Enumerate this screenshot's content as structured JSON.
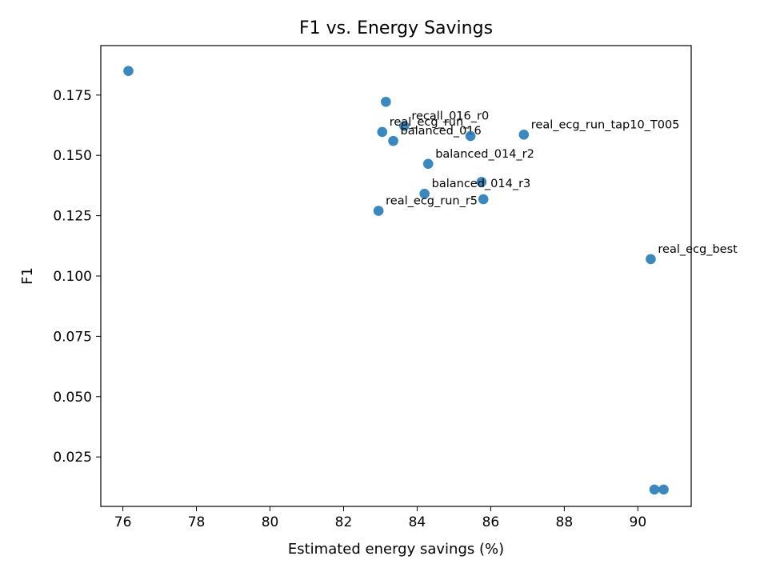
{
  "chart_data": {
    "type": "scatter",
    "title": "F1 vs. Energy Savings",
    "xlabel": "Estimated energy savings (%)",
    "ylabel": "F1",
    "xlim": [
      75.4,
      91.45
    ],
    "ylim": [
      0.0045,
      0.1955
    ],
    "grid": false,
    "legend": false,
    "marker_color": "#1f77b4",
    "xticks": [
      76,
      78,
      80,
      82,
      84,
      86,
      88,
      90
    ],
    "yticks": [
      0.025,
      0.05,
      0.075,
      0.1,
      0.125,
      0.15,
      0.175
    ],
    "xtick_labels": [
      "76",
      "78",
      "80",
      "82",
      "84",
      "86",
      "88",
      "90"
    ],
    "ytick_labels": [
      "0.025",
      "0.050",
      "0.075",
      "0.100",
      "0.125",
      "0.150",
      "0.175"
    ],
    "points": [
      {
        "x": 76.15,
        "y": 0.185,
        "label": ""
      },
      {
        "x": 83.15,
        "y": 0.1722,
        "label": ""
      },
      {
        "x": 83.65,
        "y": 0.1622,
        "label": "recall_016_r0"
      },
      {
        "x": 83.05,
        "y": 0.1597,
        "label": "real_ecg_run_"
      },
      {
        "x": 83.35,
        "y": 0.156,
        "label": "balanced_016"
      },
      {
        "x": 85.45,
        "y": 0.158,
        "label": ""
      },
      {
        "x": 86.9,
        "y": 0.1586,
        "label": "real_ecg_run_tap10_T005"
      },
      {
        "x": 84.3,
        "y": 0.1465,
        "label": "balanced_014_r2"
      },
      {
        "x": 85.75,
        "y": 0.139,
        "label": ""
      },
      {
        "x": 84.2,
        "y": 0.1341,
        "label": "balanced_014_r3"
      },
      {
        "x": 85.8,
        "y": 0.1318,
        "label": ""
      },
      {
        "x": 82.95,
        "y": 0.127,
        "label": "real_ecg_run_r5"
      },
      {
        "x": 90.35,
        "y": 0.107,
        "label": "real_ecg_best"
      },
      {
        "x": 90.45,
        "y": 0.0115,
        "label": ""
      },
      {
        "x": 90.7,
        "y": 0.0115,
        "label": ""
      }
    ]
  }
}
